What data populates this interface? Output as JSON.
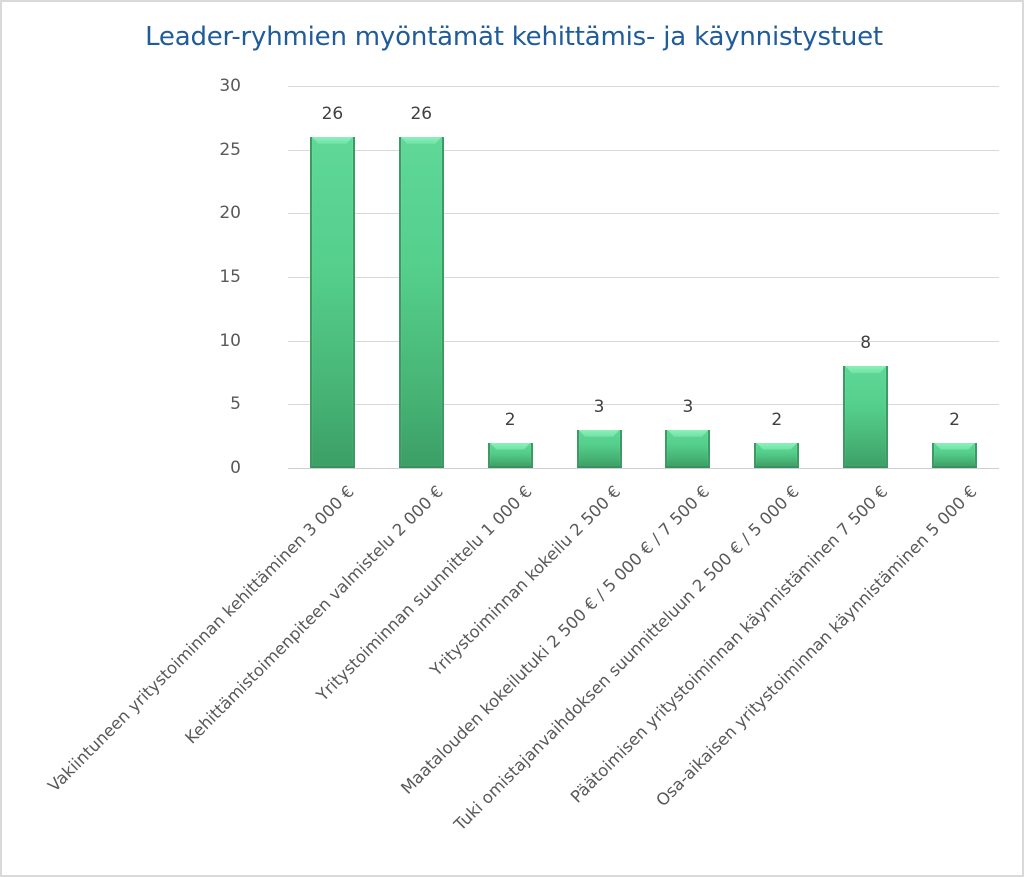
{
  "chart": {
    "title": "Leader-ryhmien myöntämät kehittämis- ja käynnistystuet",
    "y_ticks": [
      "0",
      "5",
      "10",
      "15",
      "20",
      "25",
      "30"
    ],
    "bar_color_top": "#5fd898",
    "bar_color_bottom": "#3c9f66",
    "title_color": "#1f5c99",
    "categories": [
      "Vakiintuneen yritystoiminnan kehittäminen 3 000 €",
      "Kehittämistoimenpiteen valmistelu 2 000 €",
      "Yritystoiminnan suunnittelu 1 000 €",
      "Yritystoiminnan kokeilu 2 500 €",
      "Maatalouden kokeilutuki 2 500 € / 5 000 € / 7 500 €",
      "Tuki omistajanvaihdoksen suunnitteluun 2 500 € / 5 000 €",
      "Päätoimisen yritystoiminnan käynnistäminen 7 500 €",
      "Osa-aikaisen yritystoiminnan käynnistäminen 5 000 €"
    ],
    "value_labels": [
      "26",
      "26",
      "2",
      "3",
      "3",
      "2",
      "8",
      "2"
    ]
  },
  "chart_data": {
    "type": "bar",
    "title": "Leader-ryhmien myöntämät kehittämis- ja käynnistystuet",
    "categories": [
      "Vakiintuneen yritystoiminnan kehittäminen 3 000 €",
      "Kehittämistoimenpiteen valmistelu 2 000 €",
      "Yritystoiminnan suunnittelu 1 000 €",
      "Yritystoiminnan kokeilu 2 500 €",
      "Maatalouden kokeilutuki 2 500 € / 5 000 € / 7 500 €",
      "Tuki omistajanvaihdoksen suunnitteluun 2 500 € / 5 000 €",
      "Päätoimisen yritystoiminnan käynnistäminen 7 500 €",
      "Osa-aikaisen yritystoiminnan käynnistäminen 5 000 €"
    ],
    "values": [
      26,
      26,
      2,
      3,
      3,
      2,
      8,
      2
    ],
    "xlabel": "",
    "ylabel": "",
    "ylim": [
      0,
      30
    ],
    "yticks": [
      0,
      5,
      10,
      15,
      20,
      25,
      30
    ],
    "grid": true,
    "legend": null,
    "data_labels": true
  }
}
